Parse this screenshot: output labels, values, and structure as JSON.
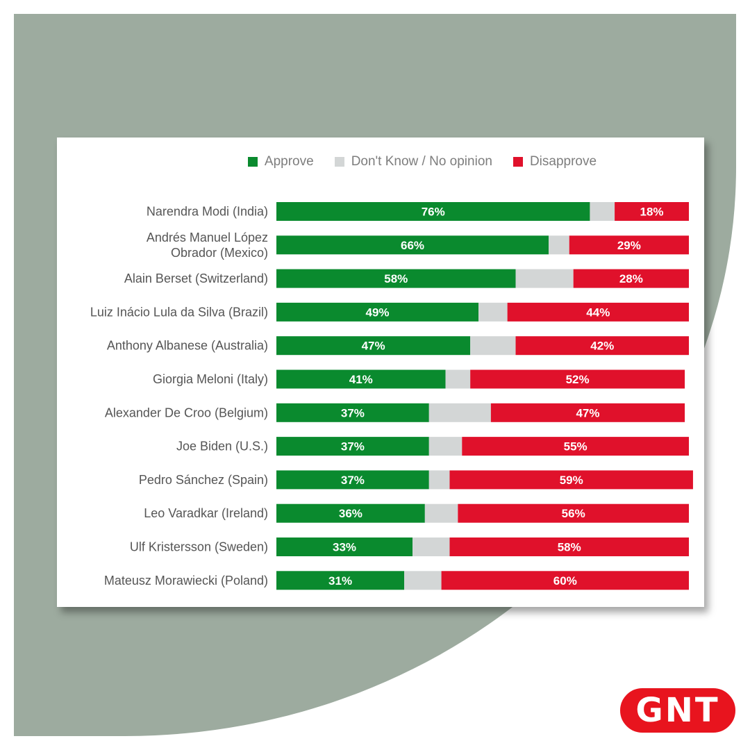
{
  "colors": {
    "approve": "#0a8a2e",
    "dont_know": "#d3d6d6",
    "disapprove": "#e0112b",
    "background": "#9dab9f"
  },
  "logo": {
    "text": "GNT"
  },
  "chart_data": {
    "type": "bar",
    "orientation": "horizontal-stacked",
    "legend_position": "top-center",
    "series": [
      {
        "name": "Approve",
        "values": [
          76,
          66,
          58,
          49,
          47,
          41,
          37,
          37,
          37,
          36,
          33,
          31
        ]
      },
      {
        "name": "Don't Know / No opinion",
        "values": [
          6,
          5,
          14,
          7,
          11,
          6,
          15,
          8,
          5,
          8,
          9,
          9
        ]
      },
      {
        "name": "Disapprove",
        "values": [
          18,
          29,
          28,
          44,
          42,
          52,
          47,
          55,
          59,
          56,
          58,
          60
        ]
      }
    ],
    "categories": [
      [
        "Narendra Modi (India)"
      ],
      [
        "Andrés Manuel López",
        "Obrador (Mexico)"
      ],
      [
        "Alain Berset (Switzerland)"
      ],
      [
        "Luiz Inácio Lula da Silva (Brazil)"
      ],
      [
        "Anthony Albanese (Australia)"
      ],
      [
        "Giorgia Meloni (Italy)"
      ],
      [
        "Alexander De Croo (Belgium)"
      ],
      [
        "Joe Biden (U.S.)"
      ],
      [
        "Pedro Sánchez (Spain)"
      ],
      [
        "Leo Varadkar (Ireland)"
      ],
      [
        "Ulf Kristersson (Sweden)"
      ],
      [
        "Mateusz Morawiecki (Poland)"
      ]
    ],
    "value_labels": {
      "approve": [
        "76%",
        "66%",
        "58%",
        "49%",
        "47%",
        "41%",
        "37%",
        "37%",
        "37%",
        "36%",
        "33%",
        "31%"
      ],
      "disapprove": [
        "18%",
        "29%",
        "28%",
        "44%",
        "42%",
        "52%",
        "47%",
        "55%",
        "59%",
        "56%",
        "58%",
        "60%"
      ]
    },
    "xlim": [
      0,
      100
    ]
  }
}
